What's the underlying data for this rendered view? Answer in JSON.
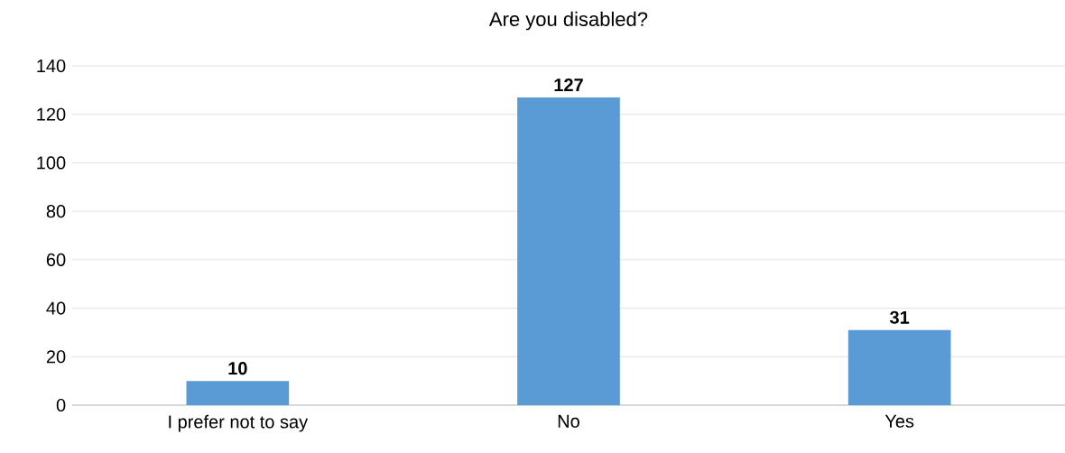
{
  "chart_data": {
    "type": "bar",
    "title": "Are you disabled?",
    "categories": [
      "I prefer not to say",
      "No",
      "Yes"
    ],
    "values": [
      10,
      127,
      31
    ],
    "value_labels": [
      "10",
      "127",
      "31"
    ],
    "color": "#5b9bd5",
    "ylim": [
      0,
      140
    ],
    "yticks": [
      0,
      20,
      40,
      60,
      80,
      100,
      120,
      140
    ],
    "grid": "y"
  }
}
